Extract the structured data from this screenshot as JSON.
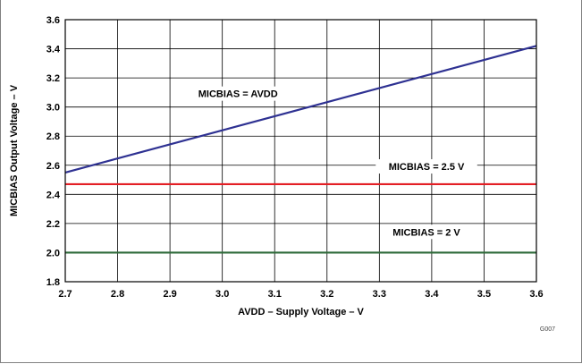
{
  "chart_data": {
    "type": "line",
    "title": "",
    "xlabel": "AVDD – Supply Voltage – V",
    "ylabel": "MICBIAS Output Voltage – V",
    "xlim": [
      2.7,
      3.6
    ],
    "ylim": [
      1.8,
      3.6
    ],
    "x_ticks": [
      "2.7",
      "2.8",
      "2.9",
      "3.0",
      "3.1",
      "3.2",
      "3.3",
      "3.4",
      "3.5",
      "3.6"
    ],
    "y_ticks": [
      "1.8",
      "2.0",
      "2.2",
      "2.4",
      "2.6",
      "2.8",
      "3.0",
      "3.2",
      "3.4",
      "3.6"
    ],
    "grid": true,
    "series": [
      {
        "name": "MICBIAS = AVDD",
        "color": "#2e3192",
        "x": [
          2.7,
          3.6
        ],
        "y": [
          2.55,
          3.42
        ]
      },
      {
        "name": "MICBIAS = 2.5 V",
        "color": "#e31e24",
        "x": [
          2.7,
          3.6
        ],
        "y": [
          2.47,
          2.47
        ]
      },
      {
        "name": "MICBIAS = 2 V",
        "color": "#2f6b3a",
        "x": [
          2.7,
          3.6
        ],
        "y": [
          2.0,
          2.0
        ]
      }
    ],
    "annotations": [
      {
        "text": "MICBIAS = AVDD",
        "x": 3.03,
        "y": 3.08
      },
      {
        "text": "MICBIAS = 2.5 V",
        "x": 3.39,
        "y": 2.58
      },
      {
        "text": "MICBIAS = 2 V",
        "x": 3.39,
        "y": 2.13
      }
    ],
    "figure_id": "G007"
  }
}
